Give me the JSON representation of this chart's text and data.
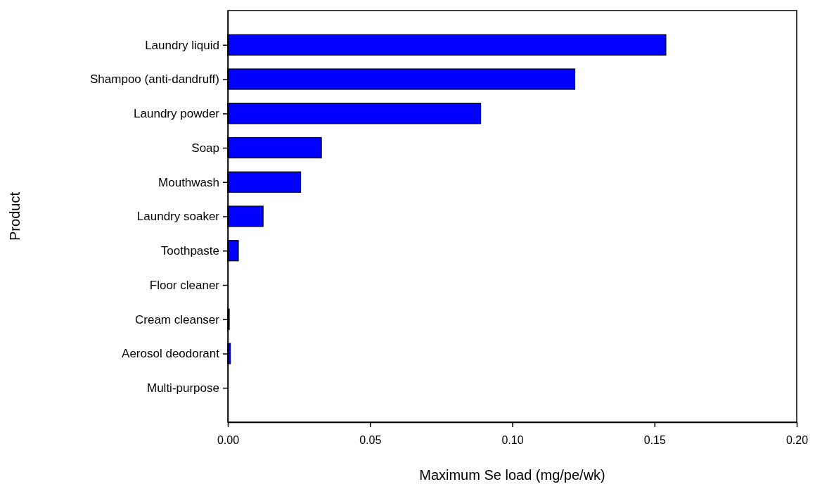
{
  "chart_data": {
    "type": "bar",
    "orientation": "horizontal",
    "xlabel": "Maximum Se load (mg/pe/wk)",
    "ylabel": "Product",
    "categories": [
      "Laundry liquid",
      "Shampoo (anti-dandruff)",
      "Laundry powder",
      "Soap",
      "Mouthwash",
      "Laundry soaker",
      "Toothpaste",
      "Floor cleaner",
      "Cream cleanser",
      "Aerosol deodorant",
      "Multi-purpose"
    ],
    "values": [
      0.154,
      0.122,
      0.0889,
      0.0329,
      0.0256,
      0.0124,
      0.0037,
      0,
      0.0005,
      0.0009,
      0
    ],
    "color": "#0000ff",
    "xlim": [
      0,
      0.2
    ],
    "xticks": [
      {
        "value": 0,
        "label": "0.00"
      },
      {
        "value": 0.05,
        "label": "0.05"
      },
      {
        "value": 0.1,
        "label": "0.10"
      },
      {
        "value": 0.15,
        "label": "0.15"
      },
      {
        "value": 0.2,
        "label": "0.20"
      }
    ],
    "grid": false
  }
}
